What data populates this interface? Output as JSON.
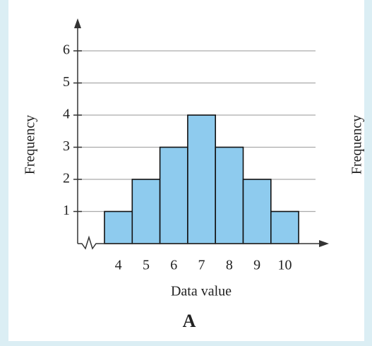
{
  "chart_data": [
    {
      "type": "bar",
      "x_label": "Data value",
      "y_label": "Frequency",
      "panel_label": "A",
      "categories": [
        "4",
        "5",
        "6",
        "7",
        "8",
        "9",
        "10"
      ],
      "values": [
        1,
        2,
        3,
        4,
        3,
        2,
        1
      ],
      "color": "#8ecbee",
      "ylim": [
        0,
        6
      ],
      "yticks": [
        1,
        2,
        3,
        4,
        5,
        6
      ],
      "grid": true
    },
    {
      "type": "partial",
      "y_label": "Frequency"
    }
  ]
}
